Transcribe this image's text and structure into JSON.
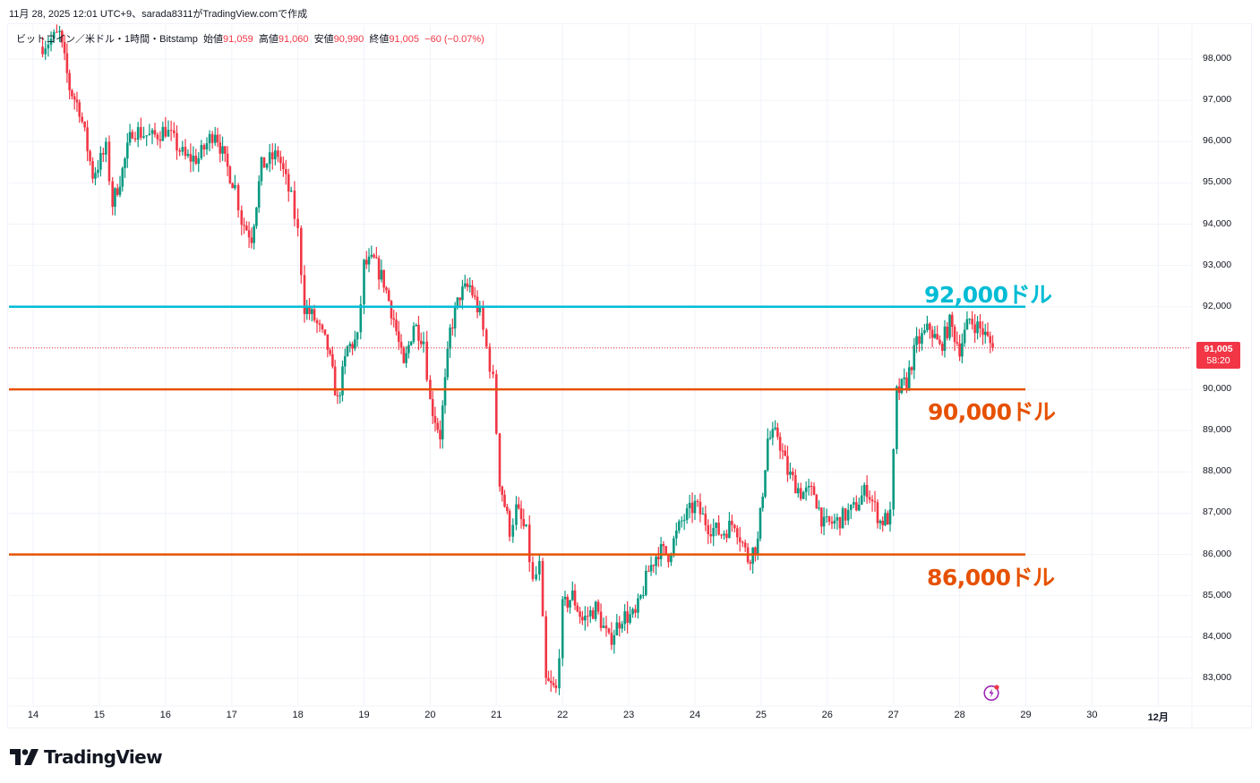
{
  "caption": "11月 28, 2025 12:01 UTC+9、sarada8311がTradingView.comで作成",
  "legend": {
    "symbol": "ビットコイン／米ドル・1時間・Bitstamp",
    "open_label": "始値",
    "open": "91,059",
    "high_label": "高値",
    "high": "91,060",
    "low_label": "安値",
    "low": "90,990",
    "close_label": "終値",
    "close": "91,005",
    "change": "−60 (−0.07%)"
  },
  "price_tag": {
    "price": "91,005",
    "countdown": "58:20"
  },
  "annotations": [
    {
      "text": "92,000ドル",
      "price": 92000,
      "color": "#00bcd4"
    },
    {
      "text": "90,000ドル",
      "price": 90000,
      "color": "#e65100"
    },
    {
      "text": "86,000ドル",
      "price": 86000,
      "color": "#e65100"
    }
  ],
  "logo": {
    "text": "TradingView"
  },
  "colors": {
    "up": "#089981",
    "down": "#f23645",
    "grid": "#f0f3fa",
    "cyan": "#00bcd4",
    "orange": "#e65100"
  },
  "chart_data": {
    "type": "candlestick",
    "title": "ビットコイン／米ドル・1時間・Bitstamp",
    "interval": "1時間",
    "xlabel": "",
    "ylabel": "",
    "ylim": [
      82500,
      98500
    ],
    "grid": true,
    "y_ticks": [
      "98,000",
      "97,000",
      "96,000",
      "95,000",
      "94,000",
      "93,000",
      "92,000",
      "91,000",
      "90,000",
      "89,000",
      "88,000",
      "87,000",
      "86,000",
      "85,000",
      "84,000",
      "83,000"
    ],
    "y_tick_values": [
      98000,
      97000,
      96000,
      95000,
      94000,
      93000,
      92000,
      91000,
      90000,
      89000,
      88000,
      87000,
      86000,
      85000,
      84000,
      83000
    ],
    "x_ticks": [
      "14",
      "15",
      "16",
      "17",
      "18",
      "19",
      "20",
      "21",
      "22",
      "23",
      "24",
      "25",
      "26",
      "27",
      "28",
      "29",
      "30",
      "12月"
    ],
    "horizontal_lines": [
      {
        "price": 92000,
        "color": "#00bcd4",
        "label": "92,000ドル"
      },
      {
        "price": 90000,
        "color": "#e65100",
        "label": "90,000ドル"
      },
      {
        "price": 86000,
        "color": "#e65100",
        "label": "86,000ドル"
      }
    ],
    "last_price": 91005,
    "ohlc_last": {
      "open": 91059,
      "high": 91060,
      "low": 90990,
      "close": 91005,
      "change": -60,
      "change_pct": -0.07
    },
    "path": [
      [
        14.1,
        98300
      ],
      [
        14.4,
        98600
      ],
      [
        14.55,
        97300
      ],
      [
        14.7,
        96800
      ],
      [
        14.9,
        95200
      ],
      [
        15.1,
        95800
      ],
      [
        15.2,
        94500
      ],
      [
        15.35,
        95300
      ],
      [
        15.5,
        96300
      ],
      [
        15.8,
        96100
      ],
      [
        16.0,
        96300
      ],
      [
        16.3,
        95600
      ],
      [
        16.5,
        95600
      ],
      [
        16.75,
        96300
      ],
      [
        16.9,
        95500
      ],
      [
        17.05,
        94900
      ],
      [
        17.15,
        94100
      ],
      [
        17.3,
        93700
      ],
      [
        17.45,
        95400
      ],
      [
        17.7,
        95700
      ],
      [
        17.9,
        94600
      ],
      [
        18.0,
        93800
      ],
      [
        18.1,
        92000
      ],
      [
        18.25,
        91700
      ],
      [
        18.45,
        91000
      ],
      [
        18.6,
        89700
      ],
      [
        18.75,
        91000
      ],
      [
        18.9,
        91200
      ],
      [
        19.0,
        93000
      ],
      [
        19.15,
        93100
      ],
      [
        19.3,
        92600
      ],
      [
        19.45,
        91700
      ],
      [
        19.6,
        90500
      ],
      [
        19.75,
        91600
      ],
      [
        19.9,
        91200
      ],
      [
        20.0,
        89700
      ],
      [
        20.15,
        88900
      ],
      [
        20.3,
        91400
      ],
      [
        20.45,
        92300
      ],
      [
        20.6,
        92500
      ],
      [
        20.75,
        91800
      ],
      [
        20.85,
        91000
      ],
      [
        20.95,
        90200
      ],
      [
        21.05,
        87800
      ],
      [
        21.2,
        86600
      ],
      [
        21.3,
        87100
      ],
      [
        21.45,
        86500
      ],
      [
        21.55,
        85300
      ],
      [
        21.65,
        85700
      ],
      [
        21.75,
        82900
      ],
      [
        21.9,
        82700
      ],
      [
        22.0,
        84700
      ],
      [
        22.15,
        85000
      ],
      [
        22.3,
        84400
      ],
      [
        22.5,
        84700
      ],
      [
        22.7,
        83900
      ],
      [
        22.9,
        84500
      ],
      [
        23.1,
        84500
      ],
      [
        23.3,
        85600
      ],
      [
        23.45,
        86100
      ],
      [
        23.6,
        86000
      ],
      [
        23.8,
        86800
      ],
      [
        24.0,
        87200
      ],
      [
        24.2,
        86700
      ],
      [
        24.4,
        86500
      ],
      [
        24.6,
        86800
      ],
      [
        24.8,
        85900
      ],
      [
        24.95,
        86300
      ],
      [
        25.1,
        88800
      ],
      [
        25.25,
        88900
      ],
      [
        25.4,
        88000
      ],
      [
        25.6,
        87500
      ],
      [
        25.8,
        87500
      ],
      [
        25.95,
        86700
      ],
      [
        26.15,
        86800
      ],
      [
        26.4,
        87100
      ],
      [
        26.6,
        87600
      ],
      [
        26.8,
        86800
      ],
      [
        26.95,
        86900
      ],
      [
        27.05,
        89900
      ],
      [
        27.2,
        90200
      ],
      [
        27.35,
        91100
      ],
      [
        27.55,
        91500
      ],
      [
        27.7,
        91000
      ],
      [
        27.85,
        91600
      ],
      [
        28.0,
        91000
      ],
      [
        28.15,
        91700
      ],
      [
        28.35,
        91400
      ],
      [
        28.5,
        91005
      ]
    ]
  }
}
